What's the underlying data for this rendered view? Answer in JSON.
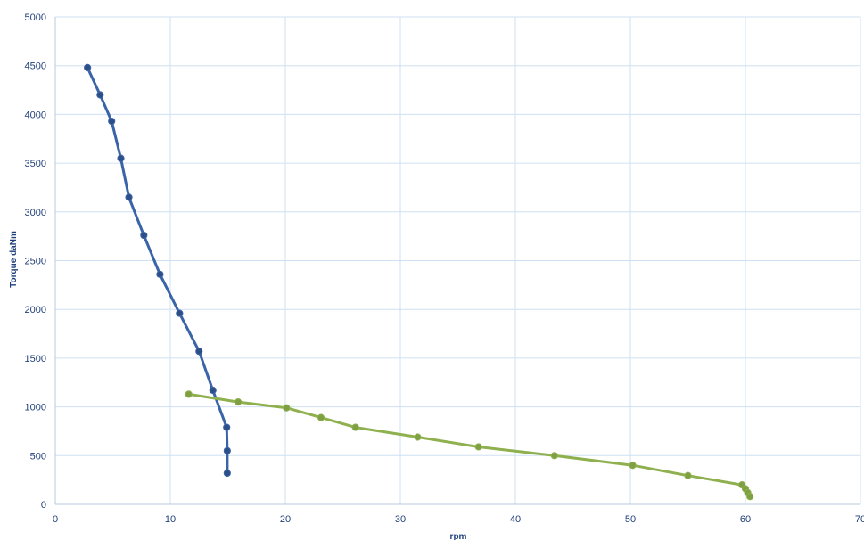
{
  "chart_data": {
    "type": "scatter",
    "title": "",
    "xlabel": "rpm",
    "ylabel": "Torque daNm",
    "xlim": [
      0,
      70
    ],
    "ylim": [
      0,
      5000
    ],
    "x_ticks": [
      0,
      10,
      20,
      30,
      40,
      50,
      60,
      70
    ],
    "y_ticks": [
      0,
      500,
      1000,
      1500,
      2000,
      2500,
      3000,
      3500,
      4000,
      4500,
      5000
    ],
    "grid": true,
    "legend": "none",
    "series": [
      {
        "color": "#3a64a8",
        "marker_color": "#2e4f86",
        "points": [
          [
            2.8,
            4480
          ],
          [
            3.9,
            4200
          ],
          [
            4.9,
            3930
          ],
          [
            5.7,
            3550
          ],
          [
            6.4,
            3150
          ],
          [
            7.7,
            2760
          ],
          [
            9.1,
            2360
          ],
          [
            10.8,
            1960
          ],
          [
            12.5,
            1570
          ],
          [
            13.7,
            1170
          ],
          [
            14.9,
            790
          ],
          [
            14.95,
            550
          ],
          [
            14.95,
            320
          ]
        ]
      },
      {
        "color": "#8fb04e",
        "marker_color": "#7f9f43",
        "points": [
          [
            11.6,
            1130
          ],
          [
            15.9,
            1050
          ],
          [
            20.1,
            990
          ],
          [
            23.1,
            890
          ],
          [
            26.1,
            790
          ],
          [
            31.5,
            690
          ],
          [
            36.8,
            590
          ],
          [
            43.4,
            500
          ],
          [
            50.2,
            400
          ],
          [
            55.0,
            295
          ],
          [
            59.7,
            200
          ],
          [
            60.0,
            160
          ],
          [
            60.2,
            120
          ],
          [
            60.4,
            80
          ]
        ]
      }
    ]
  }
}
